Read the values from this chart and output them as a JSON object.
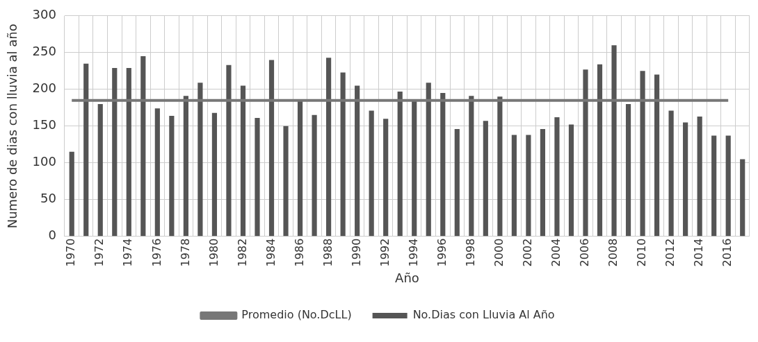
{
  "chart_data": {
    "type": "bar",
    "xlabel": "Año",
    "ylabel": "Numero de dias con lluvia al año",
    "categories": [
      "1970",
      null,
      "1972",
      null,
      "1974",
      null,
      "1976",
      null,
      "1978",
      null,
      "1980",
      null,
      "1982",
      null,
      "1984",
      null,
      "1986",
      null,
      "1988",
      null,
      "1990",
      null,
      "1992",
      null,
      "1994",
      null,
      "1996",
      null,
      "1998",
      null,
      "2000",
      null,
      "2002",
      null,
      "2004",
      null,
      "2006",
      null,
      "2008",
      null,
      "2010",
      null,
      "2012",
      null,
      "2014",
      null,
      "2016",
      null
    ],
    "series": [
      {
        "name": "No.Dias con Lluvia Al Año",
        "color": "#555555",
        "values": [
          115,
          235,
          180,
          229,
          229,
          245,
          174,
          164,
          191,
          209,
          168,
          233,
          205,
          161,
          240,
          150,
          185,
          165,
          243,
          223,
          205,
          171,
          160,
          197,
          185,
          209,
          195,
          146,
          191,
          157,
          190,
          138,
          138,
          146,
          162,
          152,
          227,
          234,
          260,
          180,
          225,
          220,
          171,
          155,
          163,
          137,
          137,
          105
        ]
      },
      {
        "name": "Promedio (No.DcLL)",
        "type": "line",
        "color": "#777777",
        "values": [
          185,
          185,
          185,
          185,
          185,
          185,
          185,
          185,
          185,
          185,
          185,
          185,
          185,
          185,
          185,
          185,
          185,
          185,
          185,
          185,
          185,
          185,
          185,
          185,
          185,
          185,
          185,
          185,
          185,
          185,
          185,
          185,
          185,
          185,
          185,
          185,
          185,
          185,
          185,
          185,
          185,
          185,
          185,
          185,
          185,
          185,
          185,
          null
        ]
      }
    ],
    "ylim": [
      0,
      300
    ],
    "yticks": [
      0,
      50,
      100,
      150,
      200,
      250,
      300
    ],
    "grid": true,
    "legend": "bottom",
    "marker": "none"
  }
}
